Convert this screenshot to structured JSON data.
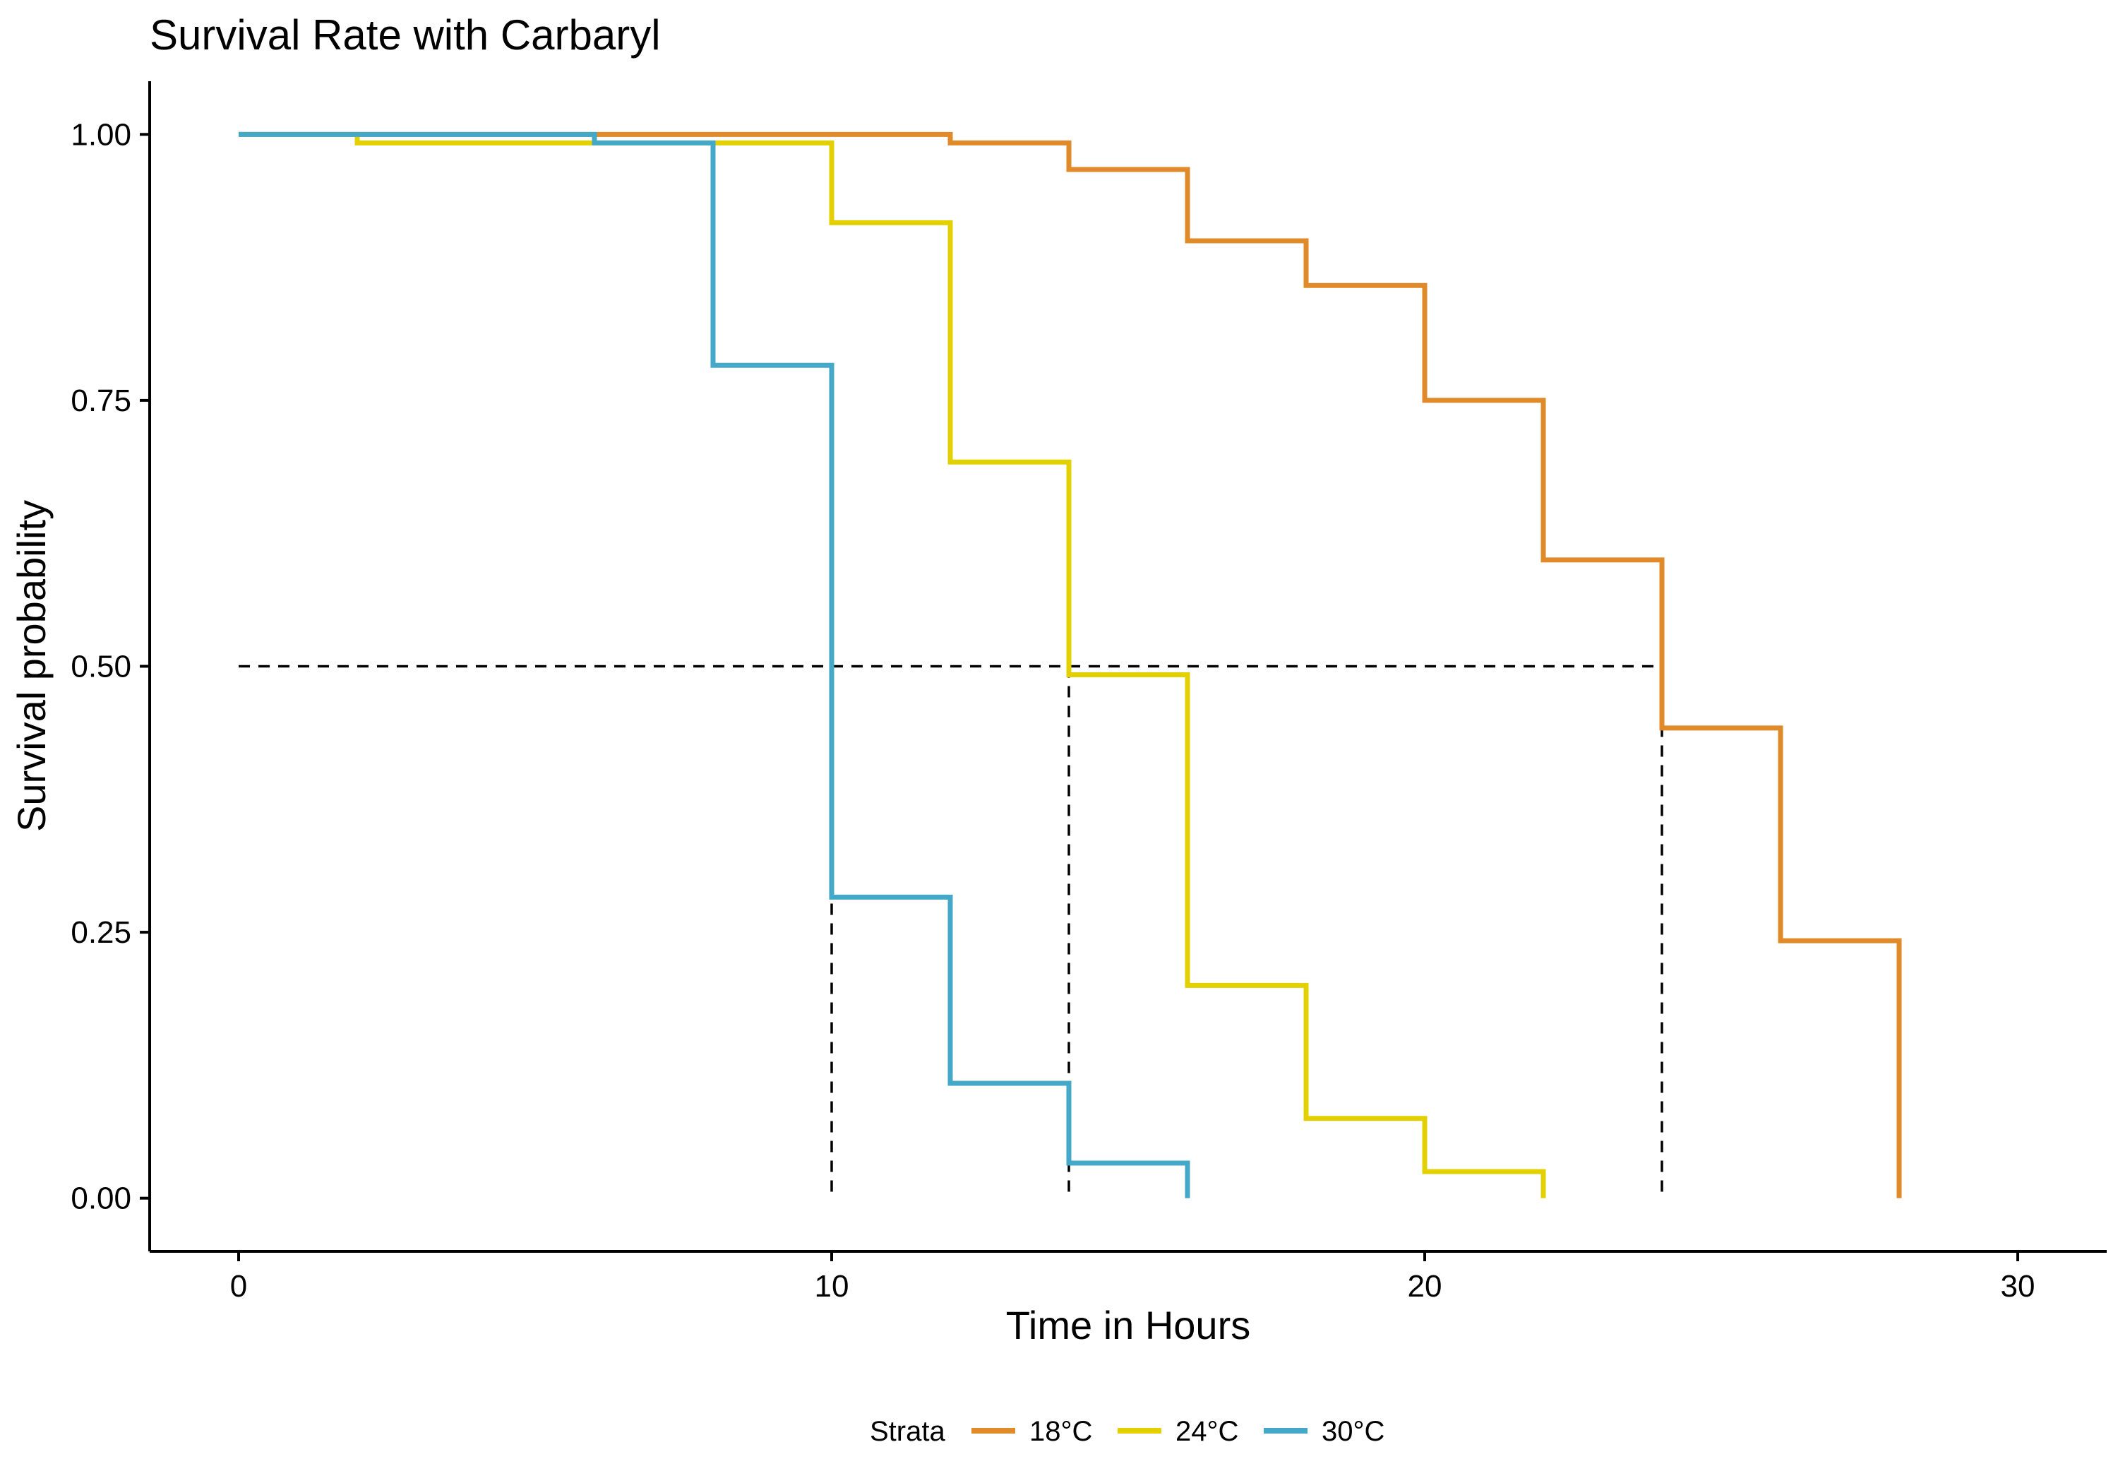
{
  "chart_data": {
    "type": "line",
    "subtype": "kaplan-meier-step",
    "title": "Survival Rate with Carbaryl",
    "xlabel": "Time in Hours",
    "ylabel": "Survival probability",
    "xlim": [
      -1.5,
      31.5
    ],
    "ylim": [
      -0.05,
      1.05
    ],
    "x_ticks": [
      0,
      10,
      20,
      30
    ],
    "x_tick_labels": [
      "0",
      "10",
      "20",
      "30"
    ],
    "y_ticks": [
      0,
      0.25,
      0.5,
      0.75,
      1.0
    ],
    "y_tick_labels": [
      "0.00",
      "0.25",
      "0.50",
      "0.75",
      "1.00"
    ],
    "grid": false,
    "legend": {
      "title": "Strata",
      "position": "bottom"
    },
    "series": [
      {
        "name": "18°C",
        "color": "#E08A2A",
        "x": [
          0,
          6,
          12,
          14,
          16,
          18,
          20,
          22,
          24,
          26,
          28
        ],
        "y": [
          1.0,
          1.0,
          0.992,
          0.967,
          0.9,
          0.858,
          0.75,
          0.6,
          0.442,
          0.242,
          0.0
        ]
      },
      {
        "name": "24°C",
        "color": "#E2D000",
        "x": [
          0,
          2,
          10,
          12,
          14,
          16,
          18,
          20,
          22
        ],
        "y": [
          1.0,
          0.992,
          0.917,
          0.692,
          0.492,
          0.2,
          0.075,
          0.025,
          0.0
        ]
      },
      {
        "name": "30°C",
        "color": "#44A8C8",
        "x": [
          0,
          6,
          8,
          10,
          12,
          14,
          16
        ],
        "y": [
          1.0,
          0.992,
          0.783,
          0.283,
          0.108,
          0.033,
          0.0
        ]
      }
    ],
    "median_lines": {
      "y": 0.5,
      "x": [
        10,
        14,
        24
      ]
    }
  }
}
